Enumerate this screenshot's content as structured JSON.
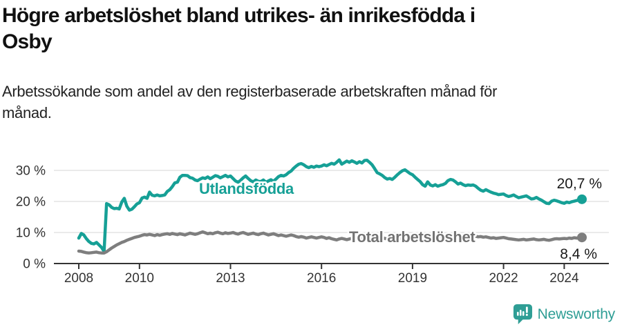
{
  "header": {
    "title_lines": [
      "Högre arbetslöshet bland utrikes- än inrikesfödda i",
      "Osby"
    ],
    "subtitle_lines": [
      "Arbetssökande som andel av den registerbaserade arbetskraften månad för",
      "månad."
    ]
  },
  "footer": {
    "brand": "Newsworthy",
    "logo_icon": "newsworthy-speech-bubble-bar-chart-icon"
  },
  "colors": {
    "accent_teal": "#16a096",
    "line_gray": "#7e7e7e",
    "brand_teal": "#2f9e95",
    "axis": "#333333",
    "grid": "#e3e3e3",
    "annotation_text": "#1a1a1a"
  },
  "chart_data": {
    "type": "line",
    "unit": "%",
    "x_start_year": 2008,
    "x_step_months": 1,
    "grid": "horizontal",
    "legend": "inline-labels",
    "ylim": [
      0,
      35
    ],
    "xlim_years": [
      2007.2,
      2025.6
    ],
    "y_ticks": [
      {
        "value": 0,
        "label": "0 %"
      },
      {
        "value": 10,
        "label": "10 %"
      },
      {
        "value": 20,
        "label": "20 %"
      },
      {
        "value": 30,
        "label": "30 %"
      }
    ],
    "x_ticks": [
      {
        "year": 2008,
        "label": "2008"
      },
      {
        "year": 2010,
        "label": "2010"
      },
      {
        "year": 2013,
        "label": "2013"
      },
      {
        "year": 2016,
        "label": "2016"
      },
      {
        "year": 2019,
        "label": "2019"
      },
      {
        "year": 2022,
        "label": "2022"
      },
      {
        "year": 2024,
        "label": "2024"
      }
    ],
    "series": [
      {
        "key": "utlandsfodda",
        "name": "Utlandsfödda",
        "color": "#16a096",
        "end_label": "20,7 %",
        "end_value": 20.7,
        "values": [
          8.2,
          9.7,
          9.2,
          8.0,
          7.1,
          6.5,
          6.3,
          6.8,
          6.0,
          5.2,
          3.9,
          19.3,
          18.9,
          18.1,
          17.7,
          17.8,
          17.6,
          19.8,
          21.0,
          18.5,
          17.2,
          17.5,
          18.3,
          19.2,
          19.6,
          21.1,
          21.4,
          21.0,
          23.0,
          22.0,
          21.8,
          22.1,
          21.8,
          21.9,
          22.1,
          23.2,
          23.8,
          24.8,
          26.0,
          26.2,
          27.8,
          28.4,
          28.4,
          28.3,
          27.7,
          27.5,
          26.9,
          26.7,
          27.2,
          27.6,
          27.4,
          27.9,
          27.3,
          27.8,
          28.3,
          28.1,
          27.6,
          28.0,
          28.4,
          27.9,
          28.2,
          27.4,
          26.6,
          26.2,
          26.8,
          27.6,
          28.2,
          27.4,
          26.7,
          26.3,
          26.9,
          26.5,
          26.4,
          26.9,
          26.2,
          26.6,
          27.0,
          26.5,
          27.2,
          28.0,
          28.4,
          28.2,
          28.6,
          29.3,
          29.8,
          30.7,
          31.4,
          32.0,
          32.2,
          31.8,
          31.2,
          30.9,
          31.3,
          31.0,
          31.4,
          31.2,
          31.4,
          31.8,
          31.5,
          31.9,
          32.3,
          32.0,
          32.6,
          33.4,
          32.0,
          32.5,
          33.0,
          32.6,
          33.1,
          32.7,
          32.3,
          32.8,
          32.4,
          33.2,
          33.3,
          32.6,
          31.8,
          30.6,
          29.3,
          28.9,
          28.4,
          27.7,
          27.2,
          27.4,
          27.1,
          27.8,
          28.6,
          29.3,
          29.9,
          30.2,
          29.6,
          29.0,
          28.6,
          27.8,
          27.1,
          26.4,
          25.4,
          24.9,
          26.3,
          25.3,
          25.0,
          25.4,
          24.9,
          25.2,
          25.4,
          25.8,
          26.7,
          27.1,
          26.9,
          26.3,
          25.6,
          25.9,
          25.4,
          25.1,
          25.3,
          25.2,
          25.3,
          24.9,
          24.2,
          23.6,
          23.3,
          23.8,
          23.4,
          23.0,
          22.7,
          22.5,
          22.2,
          22.3,
          22.4,
          21.9,
          21.6,
          21.8,
          22.1,
          21.6,
          21.2,
          21.4,
          21.6,
          21.8,
          21.3,
          20.8,
          20.9,
          21.3,
          20.8,
          20.4,
          19.9,
          19.4,
          19.3,
          20.1,
          20.4,
          20.2,
          19.9,
          19.6,
          19.4,
          19.8,
          19.6,
          19.9,
          20.1,
          20.3,
          20.5,
          20.7
        ]
      },
      {
        "key": "total",
        "name": "Total arbetslöshet",
        "color": "#7e7e7e",
        "end_label": "8,4 %",
        "end_value": 8.4,
        "values": [
          4.0,
          3.9,
          3.7,
          3.5,
          3.4,
          3.5,
          3.6,
          3.7,
          3.5,
          3.4,
          3.4,
          3.8,
          4.4,
          5.0,
          5.5,
          6.0,
          6.4,
          6.8,
          7.1,
          7.5,
          7.8,
          8.1,
          8.4,
          8.6,
          8.8,
          9.1,
          9.3,
          9.2,
          9.4,
          9.2,
          9.0,
          9.3,
          9.1,
          9.3,
          9.5,
          9.6,
          9.4,
          9.7,
          9.5,
          9.3,
          9.6,
          9.4,
          9.2,
          9.5,
          9.8,
          9.6,
          9.4,
          9.6,
          9.9,
          10.2,
          9.9,
          9.6,
          9.8,
          9.6,
          9.9,
          10.1,
          9.8,
          9.6,
          9.9,
          9.7,
          9.8,
          10.0,
          9.7,
          9.5,
          9.8,
          10.0,
          9.7,
          9.4,
          9.6,
          9.8,
          9.5,
          9.3,
          9.6,
          9.8,
          9.5,
          9.2,
          9.4,
          9.6,
          9.3,
          9.0,
          9.2,
          9.0,
          8.8,
          9.0,
          9.2,
          9.0,
          8.7,
          8.5,
          8.7,
          8.5,
          8.2,
          8.4,
          8.6,
          8.4,
          8.2,
          8.4,
          8.6,
          8.4,
          8.1,
          8.3,
          8.0,
          7.8,
          7.6,
          7.9,
          8.1,
          7.9,
          7.7,
          7.9,
          8.1,
          8.3,
          8.0,
          7.8,
          8.0,
          8.2,
          7.9,
          7.7,
          7.9,
          8.1,
          7.9,
          8.1,
          8.3,
          8.1,
          7.9,
          8.1,
          8.3,
          8.1,
          7.9,
          8.1,
          8.3,
          8.5,
          8.3,
          8.5,
          8.7,
          8.5,
          8.3,
          8.5,
          8.3,
          8.1,
          8.3,
          8.5,
          8.3,
          8.5,
          8.7,
          8.6,
          8.7,
          8.9,
          9.2,
          9.4,
          9.3,
          9.1,
          8.9,
          9.1,
          8.9,
          8.7,
          8.8,
          8.9,
          9.0,
          8.8,
          8.6,
          8.7,
          8.5,
          8.6,
          8.4,
          8.2,
          8.3,
          8.1,
          8.2,
          8.3,
          8.4,
          8.2,
          8.0,
          7.9,
          7.8,
          7.7,
          7.6,
          7.7,
          7.8,
          7.6,
          7.7,
          7.8,
          7.9,
          7.7,
          7.6,
          7.7,
          7.8,
          7.6,
          7.5,
          7.7,
          7.9,
          8.0,
          7.9,
          8.0,
          8.1,
          8.0,
          8.2,
          8.1,
          8.3,
          8.2,
          8.3,
          8.4
        ]
      }
    ]
  }
}
